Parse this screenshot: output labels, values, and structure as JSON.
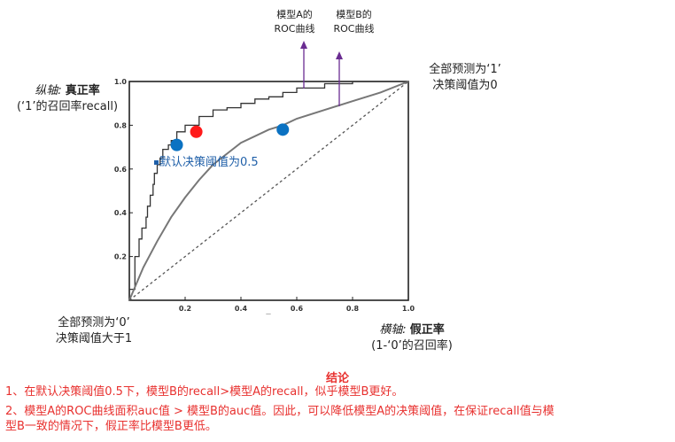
{
  "chart_data": {
    "type": "line",
    "xlim": [
      0,
      1
    ],
    "ylim": [
      0,
      1
    ],
    "x_ticks": [
      "0.2",
      "0.4",
      "0.6",
      "0.8",
      "1.0"
    ],
    "y_ticks": [
      "0.2",
      "0.4",
      "0.6",
      "0.8",
      "1.0"
    ],
    "grid": false,
    "series": [
      {
        "points": [
          [
            0,
            0
          ],
          [
            0.02,
            0.05
          ],
          [
            0.035,
            0.2
          ],
          [
            0.045,
            0.28
          ],
          [
            0.06,
            0.33
          ],
          [
            0.065,
            0.38
          ],
          [
            0.075,
            0.43
          ],
          [
            0.085,
            0.48
          ],
          [
            0.09,
            0.53
          ],
          [
            0.1,
            0.58
          ],
          [
            0.11,
            0.62
          ],
          [
            0.12,
            0.65
          ],
          [
            0.14,
            0.69
          ],
          [
            0.15,
            0.71
          ],
          [
            0.17,
            0.73
          ],
          [
            0.2,
            0.77
          ],
          [
            0.25,
            0.8
          ],
          [
            0.3,
            0.84
          ],
          [
            0.35,
            0.87
          ],
          [
            0.4,
            0.88
          ],
          [
            0.45,
            0.9
          ],
          [
            0.5,
            0.92
          ],
          [
            0.55,
            0.93
          ],
          [
            0.6,
            0.95
          ],
          [
            0.7,
            0.97
          ],
          [
            0.8,
            0.99
          ],
          [
            0.9,
            1.0
          ],
          [
            1.0,
            1.0
          ]
        ],
        "color": "#333333"
      },
      {
        "points": [
          [
            0,
            0
          ],
          [
            0.05,
            0.15
          ],
          [
            0.1,
            0.27
          ],
          [
            0.15,
            0.38
          ],
          [
            0.2,
            0.47
          ],
          [
            0.25,
            0.55
          ],
          [
            0.3,
            0.62
          ],
          [
            0.35,
            0.67
          ],
          [
            0.4,
            0.72
          ],
          [
            0.5,
            0.78
          ],
          [
            0.55,
            0.8
          ],
          [
            0.6,
            0.83
          ],
          [
            0.7,
            0.87
          ],
          [
            0.8,
            0.91
          ],
          [
            0.9,
            0.95
          ],
          [
            1.0,
            1.0
          ]
        ],
        "color": "#777777"
      },
      {
        "points": [
          [
            0,
            0
          ],
          [
            1,
            1
          ]
        ],
        "style": "dashed",
        "color": "#555555"
      }
    ],
    "markers": [
      {
        "x": 0.17,
        "y": 0.71,
        "color": "#0b72c2"
      },
      {
        "x": 0.24,
        "y": 0.77,
        "color": "#ff1a1a"
      },
      {
        "x": 0.55,
        "y": 0.78,
        "color": "#0b72c2"
      }
    ],
    "annotations": {
      "model_a_line1": "模型A的",
      "model_a_line2": "ROC曲线",
      "model_b_line1": "模型B的",
      "model_b_line2": "ROC曲线",
      "top_right_line1": "全部预测为‘1’",
      "top_right_line2": "决策阈值为0",
      "bottom_left_line1": "全部预测为‘0’",
      "bottom_left_line2": "决策阈值大于1",
      "default_threshold": "默认决策阈值为0.5",
      "y_axis_italic": "纵轴:",
      "y_axis_bold": "真正率",
      "y_axis_sub": "(‘1’的召回率recall)",
      "x_axis_italic": "横轴:",
      "x_axis_bold": "假正率",
      "x_axis_sub": "(1-‘0’的召回率)"
    },
    "arrow_color": "#6a2c91",
    "label_color_blue": "#1f5fa8"
  },
  "conclusion": {
    "title": "结论",
    "line1": "1、在默认决策阈值0.5下，模型B的recall>模型A的recall，似乎模型B更好。",
    "line2": "2、模型A的ROC曲线面积auc值 > 模型B的auc值。因此，可以降低模型A的决策阈值，在保证recall值与模",
    "line3": "型B一致的情况下，假正率比模型B更低。",
    "color": "#e8312f"
  }
}
